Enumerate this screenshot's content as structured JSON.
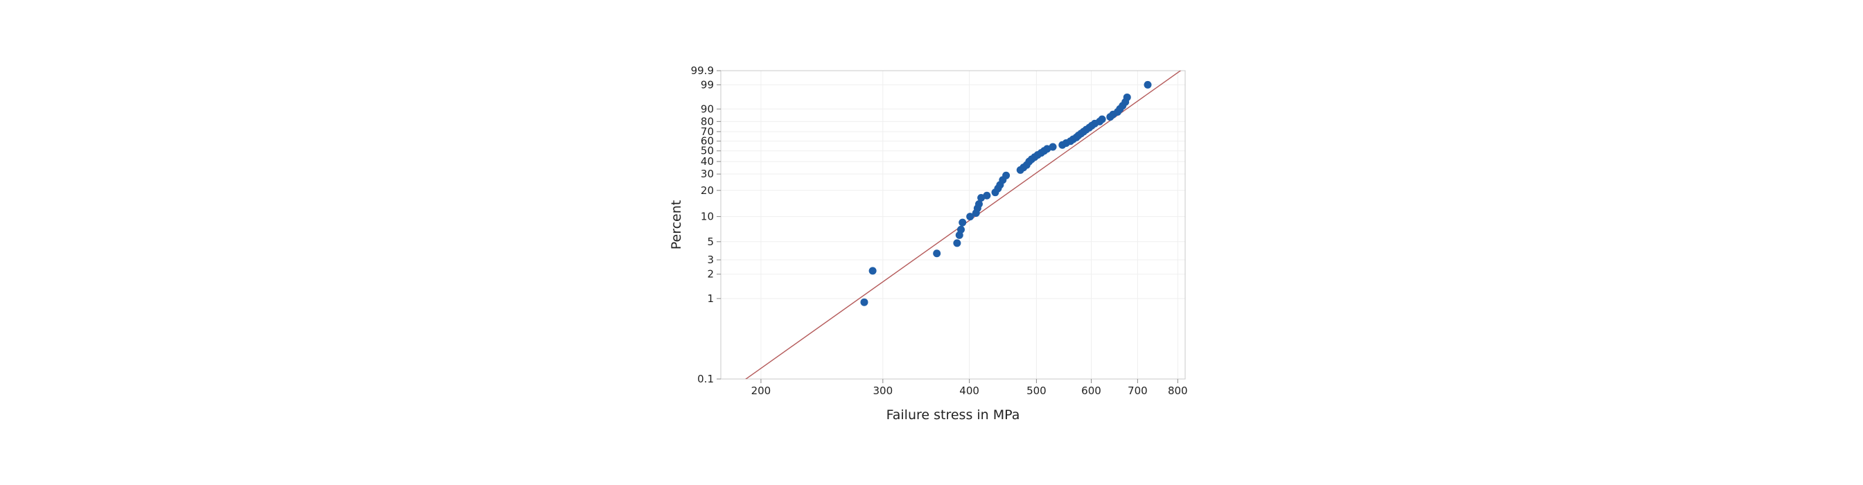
{
  "chart_data": {
    "type": "scatter",
    "title": "",
    "xlabel": "Failure stress in MPa",
    "ylabel": "Percent",
    "x_scale": "log",
    "y_scale": "weibull-probability",
    "xlim": [
      175,
      820
    ],
    "ylim": [
      0.1,
      99.9
    ],
    "x_ticks": [
      200,
      300,
      400,
      500,
      600,
      700,
      800
    ],
    "y_ticks": [
      0.1,
      1,
      2,
      3,
      5,
      10,
      20,
      30,
      40,
      50,
      60,
      70,
      80,
      90,
      99,
      99.9
    ],
    "grid": true,
    "colors": {
      "points": "#1f5ea8",
      "fit_line": "#b55a5a",
      "grid": "#efefef",
      "frame": "#c8c8c8"
    },
    "fit_line": [
      [
        175,
        0.06
      ],
      [
        820,
        99.95
      ]
    ],
    "series": [
      {
        "points": [
          [
            282,
            0.9
          ],
          [
            290,
            2.2
          ],
          [
            359,
            3.6
          ],
          [
            384,
            4.8
          ],
          [
            387,
            6.0
          ],
          [
            389,
            7.0
          ],
          [
            391,
            8.5
          ],
          [
            401,
            10.0
          ],
          [
            409,
            11.0
          ],
          [
            411,
            12.5
          ],
          [
            413,
            14.0
          ],
          [
            416,
            16.5
          ],
          [
            424,
            17.5
          ],
          [
            436,
            19.0
          ],
          [
            440,
            21.0
          ],
          [
            443,
            23.0
          ],
          [
            447,
            26.0
          ],
          [
            452,
            29.0
          ],
          [
            474,
            33.0
          ],
          [
            479,
            35.0
          ],
          [
            484,
            37.0
          ],
          [
            488,
            40.0
          ],
          [
            492,
            42.0
          ],
          [
            497,
            44.0
          ],
          [
            502,
            46.0
          ],
          [
            508,
            48.0
          ],
          [
            513,
            50.0
          ],
          [
            518,
            52.0
          ],
          [
            528,
            54.0
          ],
          [
            545,
            56.0
          ],
          [
            552,
            58.0
          ],
          [
            560,
            60.0
          ],
          [
            565,
            62.0
          ],
          [
            571,
            64.0
          ],
          [
            575,
            66.0
          ],
          [
            580,
            68.0
          ],
          [
            585,
            70.0
          ],
          [
            590,
            72.0
          ],
          [
            596,
            74.0
          ],
          [
            601,
            76.0
          ],
          [
            607,
            78.0
          ],
          [
            617,
            80.0
          ],
          [
            622,
            82.0
          ],
          [
            639,
            84.0
          ],
          [
            645,
            86.0
          ],
          [
            655,
            88.0
          ],
          [
            660,
            90.0
          ],
          [
            666,
            92.0
          ],
          [
            672,
            94.0
          ],
          [
            676,
            96.0
          ],
          [
            724,
            99.0
          ]
        ]
      }
    ]
  }
}
